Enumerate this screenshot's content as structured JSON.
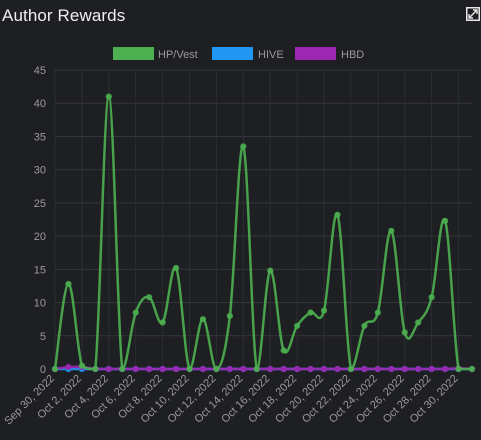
{
  "header": {
    "title": "Author Rewards",
    "expand_icon": "expand-icon"
  },
  "chart_data": {
    "type": "line",
    "title": "Author Rewards",
    "xlabel": "",
    "ylabel": "",
    "ylim": [
      0,
      45
    ],
    "yticks": [
      0,
      5,
      10,
      15,
      20,
      25,
      30,
      35,
      40,
      45
    ],
    "grid": true,
    "legend_position": "top-center",
    "x": [
      "Sep 30, 2022",
      "Oct 1, 2022",
      "Oct 2, 2022",
      "Oct 3, 2022",
      "Oct 4, 2022",
      "Oct 5, 2022",
      "Oct 6, 2022",
      "Oct 7, 2022",
      "Oct 8, 2022",
      "Oct 9, 2022",
      "Oct 10, 2022",
      "Oct 11, 2022",
      "Oct 12, 2022",
      "Oct 13, 2022",
      "Oct 14, 2022",
      "Oct 15, 2022",
      "Oct 16, 2022",
      "Oct 17, 2022",
      "Oct 18, 2022",
      "Oct 19, 2022",
      "Oct 20, 2022",
      "Oct 21, 2022",
      "Oct 22, 2022",
      "Oct 23, 2022",
      "Oct 24, 2022",
      "Oct 25, 2022",
      "Oct 26, 2022",
      "Oct 27, 2022",
      "Oct 28, 2022",
      "Oct 29, 2022",
      "Oct 30, 2022",
      "Oct 31, 2022"
    ],
    "xtick_labels": [
      "Sep 30, 2022",
      "Oct 2, 2022",
      "Oct 4, 2022",
      "Oct 6, 2022",
      "Oct 8, 2022",
      "Oct 10, 2022",
      "Oct 12, 2022",
      "Oct 14, 2022",
      "Oct 16, 2022",
      "Oct 18, 2022",
      "Oct 20, 2022",
      "Oct 22, 2022",
      "Oct 24, 2022",
      "Oct 26, 2022",
      "Oct 28, 2022",
      "Oct 30, 2022"
    ],
    "series": [
      {
        "name": "HP/Vest",
        "color": "#4caf50",
        "values": [
          0,
          12.8,
          0.5,
          0,
          41,
          0,
          8.5,
          10.8,
          7,
          15.2,
          0,
          7.5,
          0,
          8,
          33.5,
          0,
          14.8,
          2.8,
          6.5,
          8.5,
          8.8,
          23.2,
          0,
          6.5,
          8.5,
          20.8,
          5.5,
          7,
          10.8,
          22.3,
          0,
          0
        ]
      },
      {
        "name": "HIVE",
        "color": "#2196f3",
        "values": [
          0,
          0,
          0,
          0,
          0,
          0,
          0,
          0,
          0,
          0,
          0,
          0,
          0,
          0,
          0,
          0,
          0,
          0,
          0,
          0,
          0,
          0,
          0,
          0,
          0,
          0,
          0,
          0,
          0,
          0,
          0,
          0
        ]
      },
      {
        "name": "HBD",
        "color": "#9c27b0",
        "values": [
          0,
          0.3,
          0.3,
          0,
          0,
          0,
          0,
          0,
          0,
          0,
          0,
          0,
          0,
          0,
          0,
          0,
          0,
          0,
          0,
          0,
          0,
          0,
          0,
          0,
          0,
          0,
          0,
          0,
          0,
          0,
          0.1,
          0
        ]
      }
    ]
  }
}
